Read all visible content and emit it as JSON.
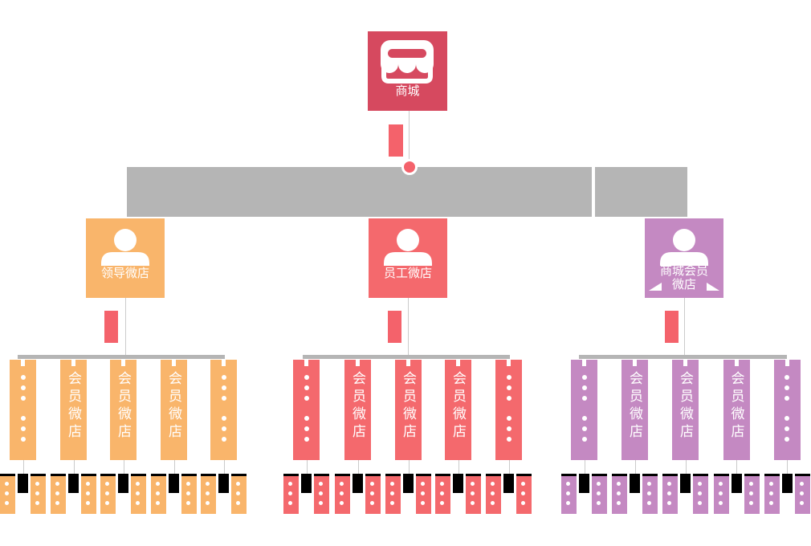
{
  "diagram": {
    "background": "#ffffff",
    "root": {
      "id": "mall",
      "label": "商城",
      "icon": "storefront-icon",
      "color": "#d6495f"
    },
    "palette": {
      "connector_red": "#f4626b",
      "trunk_gray": "#b5b5b5",
      "line_gray": "#cbcbcb",
      "placeholder_black": "#000000",
      "text_white": "#ffffff"
    },
    "branches": [
      {
        "id": "leader-weidian",
        "full_label": "领导微店",
        "label_lines": [
          "领导微店"
        ],
        "icon": "person-icon",
        "color": "#f9b56b",
        "children": [
          {
            "type": "more",
            "sub_stores": 2
          },
          {
            "type": "store",
            "label": "会员微店",
            "sub_stores": 2
          },
          {
            "type": "store",
            "label": "会员微店",
            "sub_stores": 2
          },
          {
            "type": "store",
            "label": "会员微店",
            "sub_stores": 2
          },
          {
            "type": "more",
            "sub_stores": 2
          }
        ]
      },
      {
        "id": "employee-weidian",
        "full_label": "员工微店",
        "label_lines": [
          "员工微店"
        ],
        "icon": "person-icon",
        "color": "#f4696d",
        "children": [
          {
            "type": "more",
            "sub_stores": 2
          },
          {
            "type": "store",
            "label": "会员微店",
            "sub_stores": 2
          },
          {
            "type": "store",
            "label": "会员微店",
            "sub_stores": 2
          },
          {
            "type": "store",
            "label": "会员微店",
            "sub_stores": 2
          },
          {
            "type": "more",
            "sub_stores": 2
          }
        ]
      },
      {
        "id": "mall-member-weidian",
        "full_label": "商城会员微店",
        "label_lines": [
          "商城会员",
          "微店"
        ],
        "icon": "person-icon",
        "color": "#c489c2",
        "corner_marks": true,
        "children": [
          {
            "type": "more",
            "sub_stores": 2
          },
          {
            "type": "store",
            "label": "会员微店",
            "sub_stores": 2
          },
          {
            "type": "store",
            "label": "会员微店",
            "sub_stores": 2
          },
          {
            "type": "store",
            "label": "会员微店",
            "sub_stores": 2
          },
          {
            "type": "more",
            "sub_stores": 2
          }
        ]
      }
    ]
  }
}
